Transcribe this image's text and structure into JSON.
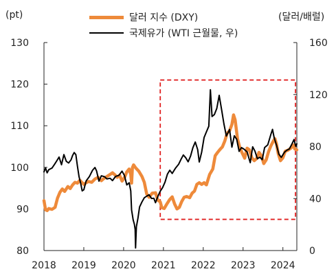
{
  "units": {
    "left": "(pt)",
    "right": "(달러/배럴)"
  },
  "chart_data": {
    "type": "line",
    "title": "",
    "legend_position": "top",
    "xlim": [
      2018.0,
      2024.35
    ],
    "x_ticks": [
      2018,
      2019,
      2020,
      2021,
      2022,
      2023,
      2024
    ],
    "y_left": {
      "label": "(pt)",
      "ylim": [
        80,
        130
      ],
      "ticks": [
        80,
        90,
        100,
        110,
        120,
        130
      ]
    },
    "y_right": {
      "label": "(달러/배럴)",
      "ylim": [
        0,
        160
      ],
      "ticks": [
        0,
        40,
        80,
        120,
        160
      ]
    },
    "grid": false,
    "highlight_box": {
      "x": [
        2020.92,
        2024.35
      ],
      "y_left": [
        87.5,
        121
      ],
      "style": "dashed",
      "color": "#e02020"
    },
    "series": [
      {
        "name": "달러 지수 (DXY)",
        "axis": "left",
        "color": "#ee8a3a",
        "stroke": "thick",
        "points": [
          [
            2018.0,
            92.0
          ],
          [
            2018.04,
            89.8
          ],
          [
            2018.08,
            89.6
          ],
          [
            2018.12,
            90.1
          ],
          [
            2018.2,
            89.9
          ],
          [
            2018.28,
            90.4
          ],
          [
            2018.34,
            92.6
          ],
          [
            2018.4,
            94.0
          ],
          [
            2018.46,
            94.8
          ],
          [
            2018.52,
            94.2
          ],
          [
            2018.6,
            95.4
          ],
          [
            2018.66,
            94.9
          ],
          [
            2018.72,
            95.8
          ],
          [
            2018.78,
            96.4
          ],
          [
            2018.84,
            96.2
          ],
          [
            2018.9,
            96.9
          ],
          [
            2018.96,
            96.3
          ],
          [
            2019.0,
            95.9
          ],
          [
            2019.06,
            96.3
          ],
          [
            2019.12,
            96.6
          ],
          [
            2019.2,
            96.4
          ],
          [
            2019.28,
            97.2
          ],
          [
            2019.36,
            97.6
          ],
          [
            2019.44,
            96.8
          ],
          [
            2019.5,
            97.3
          ],
          [
            2019.58,
            97.8
          ],
          [
            2019.66,
            98.3
          ],
          [
            2019.72,
            98.7
          ],
          [
            2019.78,
            98.2
          ],
          [
            2019.84,
            97.6
          ],
          [
            2019.9,
            98.1
          ],
          [
            2019.96,
            96.7
          ],
          [
            2020.02,
            97.5
          ],
          [
            2020.08,
            98.9
          ],
          [
            2020.14,
            99.6
          ],
          [
            2020.18,
            98.3
          ],
          [
            2020.2,
            96.2
          ],
          [
            2020.22,
            99.9
          ],
          [
            2020.25,
            100.6
          ],
          [
            2020.3,
            99.9
          ],
          [
            2020.38,
            99.1
          ],
          [
            2020.46,
            97.8
          ],
          [
            2020.52,
            96.4
          ],
          [
            2020.58,
            93.6
          ],
          [
            2020.64,
            92.8
          ],
          [
            2020.72,
            93.8
          ],
          [
            2020.8,
            93.9
          ],
          [
            2020.86,
            92.1
          ],
          [
            2020.92,
            91.7
          ],
          [
            2020.96,
            90.3
          ],
          [
            2021.02,
            90.1
          ],
          [
            2021.08,
            91.1
          ],
          [
            2021.16,
            92.3
          ],
          [
            2021.22,
            92.9
          ],
          [
            2021.28,
            91.2
          ],
          [
            2021.34,
            90.0
          ],
          [
            2021.4,
            90.4
          ],
          [
            2021.46,
            91.8
          ],
          [
            2021.52,
            92.8
          ],
          [
            2021.58,
            93.0
          ],
          [
            2021.66,
            92.7
          ],
          [
            2021.72,
            93.8
          ],
          [
            2021.78,
            94.3
          ],
          [
            2021.84,
            95.9
          ],
          [
            2021.9,
            96.3
          ],
          [
            2021.96,
            95.9
          ],
          [
            2022.02,
            96.3
          ],
          [
            2022.08,
            95.8
          ],
          [
            2022.16,
            98.3
          ],
          [
            2022.24,
            99.6
          ],
          [
            2022.3,
            102.8
          ],
          [
            2022.36,
            103.6
          ],
          [
            2022.42,
            104.3
          ],
          [
            2022.48,
            104.9
          ],
          [
            2022.54,
            106.3
          ],
          [
            2022.6,
            108.2
          ],
          [
            2022.66,
            108.8
          ],
          [
            2022.72,
            110.3
          ],
          [
            2022.76,
            112.6
          ],
          [
            2022.8,
            111.4
          ],
          [
            2022.86,
            106.8
          ],
          [
            2022.92,
            104.7
          ],
          [
            2022.98,
            103.4
          ],
          [
            2023.04,
            102.2
          ],
          [
            2023.1,
            104.6
          ],
          [
            2023.16,
            104.2
          ],
          [
            2023.22,
            102.3
          ],
          [
            2023.28,
            101.6
          ],
          [
            2023.34,
            102.1
          ],
          [
            2023.4,
            103.6
          ],
          [
            2023.46,
            102.8
          ],
          [
            2023.52,
            100.9
          ],
          [
            2023.58,
            101.8
          ],
          [
            2023.64,
            103.8
          ],
          [
            2023.7,
            105.2
          ],
          [
            2023.76,
            106.3
          ],
          [
            2023.8,
            106.9
          ],
          [
            2023.84,
            105.6
          ],
          [
            2023.88,
            103.4
          ],
          [
            2023.94,
            101.6
          ],
          [
            2024.0,
            102.3
          ],
          [
            2024.06,
            103.9
          ],
          [
            2024.12,
            104.1
          ],
          [
            2024.2,
            104.6
          ],
          [
            2024.26,
            105.4
          ],
          [
            2024.3,
            104.4
          ],
          [
            2024.35,
            104.2
          ]
        ]
      },
      {
        "name": "국제유가 (WTI 근월물, 우)",
        "axis": "right",
        "color": "#000000",
        "stroke": "thin",
        "points": [
          [
            2018.0,
            60.5
          ],
          [
            2018.04,
            63.5
          ],
          [
            2018.08,
            59.8
          ],
          [
            2018.12,
            62.2
          ],
          [
            2018.2,
            63.4
          ],
          [
            2018.26,
            66.1
          ],
          [
            2018.32,
            68.9
          ],
          [
            2018.38,
            71.9
          ],
          [
            2018.44,
            66.0
          ],
          [
            2018.5,
            73.8
          ],
          [
            2018.56,
            68.6
          ],
          [
            2018.62,
            67.4
          ],
          [
            2018.68,
            69.8
          ],
          [
            2018.72,
            73.2
          ],
          [
            2018.76,
            75.4
          ],
          [
            2018.8,
            73.8
          ],
          [
            2018.84,
            64.9
          ],
          [
            2018.88,
            56.9
          ],
          [
            2018.92,
            52.0
          ],
          [
            2018.96,
            45.9
          ],
          [
            2019.0,
            46.8
          ],
          [
            2019.06,
            53.6
          ],
          [
            2019.14,
            56.9
          ],
          [
            2019.22,
            61.8
          ],
          [
            2019.28,
            63.9
          ],
          [
            2019.32,
            61.3
          ],
          [
            2019.38,
            53.4
          ],
          [
            2019.44,
            57.5
          ],
          [
            2019.52,
            56.8
          ],
          [
            2019.58,
            55.1
          ],
          [
            2019.66,
            55.6
          ],
          [
            2019.72,
            53.8
          ],
          [
            2019.8,
            57.1
          ],
          [
            2019.88,
            57.8
          ],
          [
            2019.96,
            61.1
          ],
          [
            2020.02,
            57.7
          ],
          [
            2020.08,
            50.5
          ],
          [
            2020.14,
            52.1
          ],
          [
            2020.18,
            45.9
          ],
          [
            2020.2,
            31.2
          ],
          [
            2020.24,
            23.6
          ],
          [
            2020.27,
            20.1
          ],
          [
            2020.29,
            16.2
          ],
          [
            2020.3,
            2.0
          ],
          [
            2020.32,
            18.3
          ],
          [
            2020.36,
            25.0
          ],
          [
            2020.4,
            33.5
          ],
          [
            2020.46,
            37.4
          ],
          [
            2020.52,
            40.6
          ],
          [
            2020.58,
            41.8
          ],
          [
            2020.64,
            42.9
          ],
          [
            2020.7,
            40.1
          ],
          [
            2020.76,
            40.2
          ],
          [
            2020.8,
            36.8
          ],
          [
            2020.86,
            41.6
          ],
          [
            2020.92,
            45.6
          ],
          [
            2020.98,
            48.5
          ],
          [
            2021.04,
            52.7
          ],
          [
            2021.1,
            58.8
          ],
          [
            2021.16,
            61.8
          ],
          [
            2021.22,
            59.3
          ],
          [
            2021.3,
            63.2
          ],
          [
            2021.38,
            66.3
          ],
          [
            2021.44,
            70.1
          ],
          [
            2021.5,
            73.5
          ],
          [
            2021.56,
            71.4
          ],
          [
            2021.62,
            68.3
          ],
          [
            2021.68,
            72.6
          ],
          [
            2021.74,
            79.1
          ],
          [
            2021.8,
            83.5
          ],
          [
            2021.86,
            77.6
          ],
          [
            2021.9,
            68.1
          ],
          [
            2021.96,
            75.7
          ],
          [
            2022.02,
            86.9
          ],
          [
            2022.08,
            91.3
          ],
          [
            2022.14,
            95.7
          ],
          [
            2022.18,
            123.7
          ],
          [
            2022.22,
            103.1
          ],
          [
            2022.28,
            104.6
          ],
          [
            2022.34,
            109.3
          ],
          [
            2022.4,
            119.4
          ],
          [
            2022.46,
            108.4
          ],
          [
            2022.52,
            97.4
          ],
          [
            2022.58,
            88.1
          ],
          [
            2022.66,
            93.1
          ],
          [
            2022.72,
            79.5
          ],
          [
            2022.78,
            88.3
          ],
          [
            2022.84,
            85.6
          ],
          [
            2022.9,
            76.3
          ],
          [
            2022.96,
            79.2
          ],
          [
            2023.02,
            78.1
          ],
          [
            2023.1,
            75.9
          ],
          [
            2023.18,
            67.6
          ],
          [
            2023.24,
            79.8
          ],
          [
            2023.3,
            76.4
          ],
          [
            2023.36,
            70.6
          ],
          [
            2023.42,
            71.8
          ],
          [
            2023.48,
            69.9
          ],
          [
            2023.54,
            79.2
          ],
          [
            2023.62,
            81.3
          ],
          [
            2023.7,
            89.5
          ],
          [
            2023.74,
            93.2
          ],
          [
            2023.78,
            86.8
          ],
          [
            2023.84,
            81.1
          ],
          [
            2023.9,
            74.1
          ],
          [
            2023.96,
            71.7
          ],
          [
            2024.04,
            75.6
          ],
          [
            2024.1,
            77.2
          ],
          [
            2024.16,
            78.1
          ],
          [
            2024.22,
            81.6
          ],
          [
            2024.28,
            85.4
          ],
          [
            2024.32,
            80.3
          ],
          [
            2024.35,
            82.1
          ]
        ]
      }
    ]
  }
}
